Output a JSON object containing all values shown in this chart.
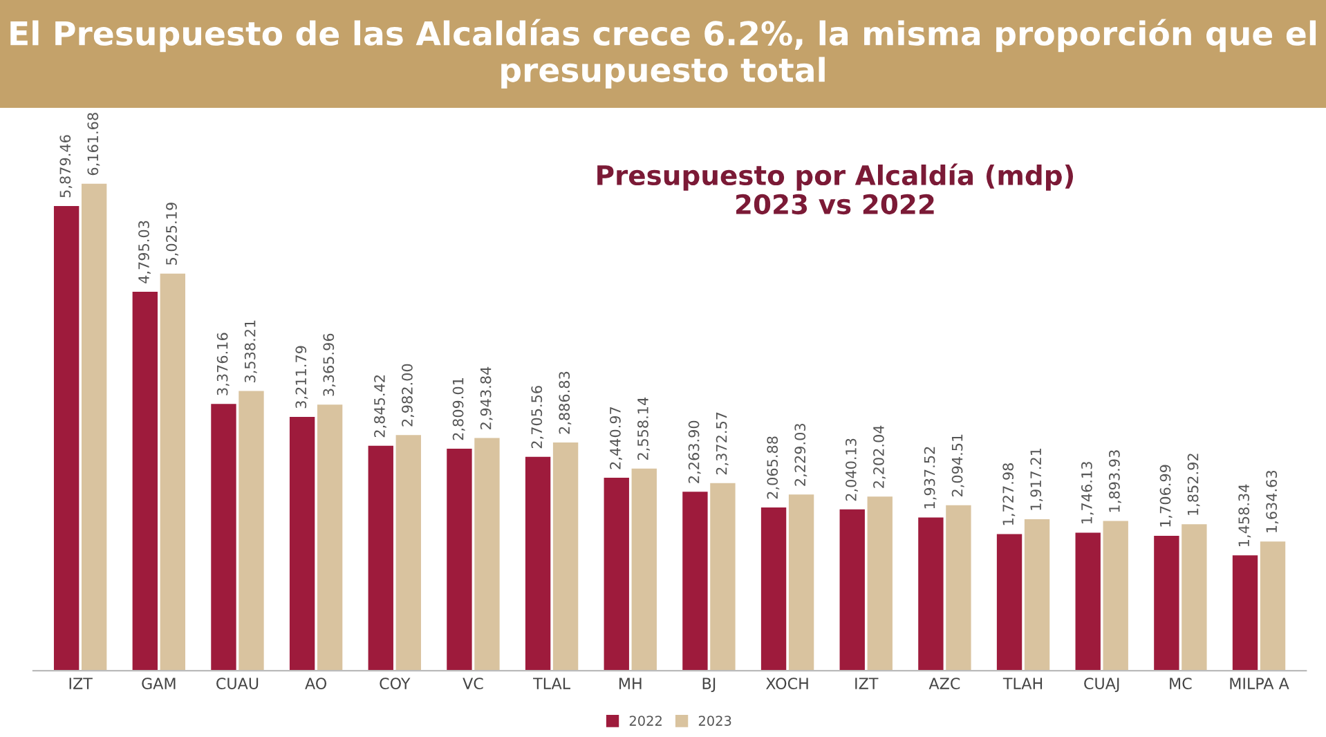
{
  "chart_data": {
    "type": "bar",
    "title": "El Presupuesto de las Alcaldías crece 6.2%, la misma proporción que el presupuesto total",
    "subtitle": "Presupuesto por Alcaldía (mdp)\n2023 vs 2022",
    "categories": [
      "IZT",
      "GAM",
      "CUAU",
      "AO",
      "COY",
      "VC",
      "TLAL",
      "MH",
      "BJ",
      "XOCH",
      "IZT",
      "AZC",
      "TLAH",
      "CUAJ",
      "MC",
      "MILPA A"
    ],
    "series": [
      {
        "name": "2022",
        "color": "#9e1b3c",
        "values": [
          5879.46,
          4795.03,
          3376.16,
          3211.79,
          2845.42,
          2809.01,
          2705.56,
          2440.97,
          2263.9,
          2065.88,
          2040.13,
          1937.52,
          1727.98,
          1746.13,
          1706.99,
          1458.34
        ],
        "value_labels": [
          "5,879.46",
          "4,795.03",
          "3,376.16",
          "3,211.79",
          "2,845.42",
          "2,809.01",
          "2,705.56",
          "2,440.97",
          "2,263.90",
          "2,065.88",
          "2,040.13",
          "1,937.52",
          "1,727.98",
          "1,746.13",
          "1,706.99",
          "1,458.34"
        ]
      },
      {
        "name": "2023",
        "color": "#d9c39f",
        "values": [
          6161.68,
          5025.19,
          3538.21,
          3365.96,
          2982.0,
          2943.84,
          2886.83,
          2558.14,
          2372.57,
          2229.03,
          2202.04,
          2094.51,
          1917.21,
          1893.93,
          1852.92,
          1634.63
        ],
        "value_labels": [
          "6,161.68",
          "5,025.19",
          "3,538.21",
          "3,365.96",
          "2,982.00",
          "2,943.84",
          "2,886.83",
          "2,558.14",
          "2,372.57",
          "2,229.03",
          "2,202.04",
          "2,094.51",
          "1,917.21",
          "1,893.93",
          "1,852.92",
          "1,634.63"
        ]
      }
    ],
    "tick_labels": "x",
    "grid": false,
    "legend": "bottom"
  }
}
